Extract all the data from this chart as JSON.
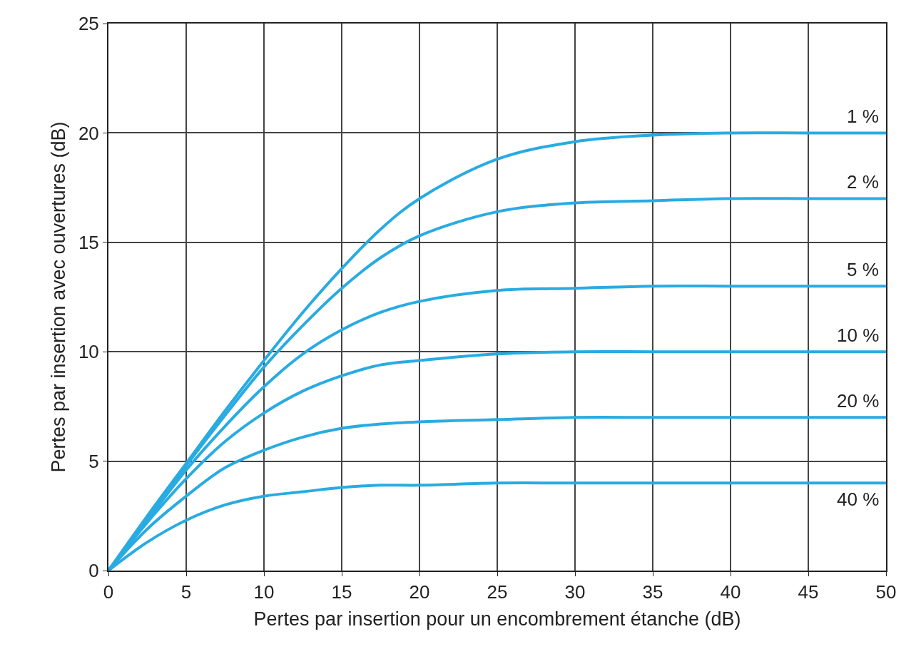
{
  "chart_data": {
    "type": "line",
    "xlabel": "Pertes par insertion pour un encombrement étanche (dB)",
    "ylabel": "Pertes par insertion avec ouvertures (dB)",
    "x": [
      0,
      2.5,
      5,
      7.5,
      10,
      12.5,
      15,
      17.5,
      20,
      25,
      30,
      35,
      40,
      45,
      50
    ],
    "series": [
      {
        "name": "1 %",
        "color": "#29abe2",
        "values": [
          0,
          2.5,
          4.9,
          7.3,
          9.6,
          11.8,
          13.8,
          15.6,
          17.0,
          18.8,
          19.6,
          19.9,
          20.0,
          20.0,
          20.0
        ]
      },
      {
        "name": "2 %",
        "color": "#29abe2",
        "values": [
          0,
          2.4,
          4.8,
          7.1,
          9.3,
          11.2,
          12.9,
          14.3,
          15.3,
          16.4,
          16.8,
          16.9,
          17.0,
          17.0,
          17.0
        ]
      },
      {
        "name": "5 %",
        "color": "#29abe2",
        "values": [
          0,
          2.3,
          4.6,
          6.6,
          8.4,
          9.9,
          11.0,
          11.8,
          12.3,
          12.8,
          12.9,
          13.0,
          13.0,
          13.0,
          13.0
        ]
      },
      {
        "name": "10 %",
        "color": "#29abe2",
        "values": [
          0,
          2.2,
          4.2,
          5.9,
          7.2,
          8.2,
          8.9,
          9.4,
          9.6,
          9.9,
          10.0,
          10.0,
          10.0,
          10.0,
          10.0
        ]
      },
      {
        "name": "20 %",
        "color": "#29abe2",
        "values": [
          0,
          1.9,
          3.4,
          4.7,
          5.5,
          6.1,
          6.5,
          6.7,
          6.8,
          6.9,
          7.0,
          7.0,
          7.0,
          7.0,
          7.0
        ]
      },
      {
        "name": "40 %",
        "color": "#29abe2",
        "values": [
          0,
          1.3,
          2.3,
          3.0,
          3.4,
          3.6,
          3.8,
          3.9,
          3.9,
          4.0,
          4.0,
          4.0,
          4.0,
          4.0,
          4.0
        ]
      }
    ],
    "xlim": [
      0,
      50
    ],
    "xticks": [
      0,
      5,
      10,
      15,
      20,
      25,
      30,
      35,
      40,
      45,
      50
    ],
    "ylim": [
      0,
      25
    ],
    "yticks": [
      0,
      5,
      10,
      15,
      20,
      25
    ],
    "grid": true,
    "legend": false,
    "marker": "none",
    "line_style": "solid"
  }
}
